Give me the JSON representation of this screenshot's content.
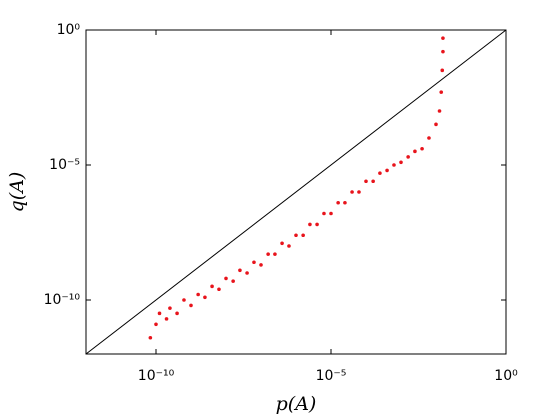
{
  "chart_data": {
    "type": "scatter",
    "x_label": "p(A)",
    "y_label": "q(A)",
    "log_x": true,
    "log_y": true,
    "diagonal": true,
    "box": true,
    "xlim": [
      1e-12,
      1
    ],
    "ylim": [
      1e-12,
      1
    ],
    "xticks": [
      {
        "value": 1e-10,
        "label": "10⁻¹⁰"
      },
      {
        "value": 1e-05,
        "label": "10⁻⁵"
      },
      {
        "value": 1,
        "label": "10⁰"
      }
    ],
    "yticks": [
      {
        "value": 1e-10,
        "label": "10⁻¹⁰"
      },
      {
        "value": 1e-05,
        "label": "10⁻⁵"
      },
      {
        "value": 1,
        "label": "10⁰"
      }
    ],
    "color": "#e8141c",
    "x": [
      6.9e-11,
      1e-10,
      1.26e-10,
      2e-10,
      2.5e-10,
      4e-10,
      6.3e-10,
      1e-09,
      1.6e-09,
      2.5e-09,
      4e-09,
      6.3e-09,
      1e-08,
      1.6e-08,
      2.5e-08,
      4e-08,
      6.3e-08,
      1e-07,
      1.6e-07,
      2.5e-07,
      4e-07,
      6.3e-07,
      1e-06,
      1.6e-06,
      2.5e-06,
      4e-06,
      6.3e-06,
      1e-05,
      1.6e-05,
      2.5e-05,
      4e-05,
      6.3e-05,
      0.0001,
      0.00016,
      0.00025,
      0.0004,
      0.00063,
      0.001,
      0.0016,
      0.0025,
      0.004,
      0.0063,
      0.01,
      0.0126,
      0.0141,
      0.0151,
      0.0158,
      0.0158
    ],
    "values": [
      4e-12,
      1.26e-11,
      3.2e-11,
      2e-11,
      5e-11,
      3.2e-11,
      1e-10,
      6.3e-11,
      1.6e-10,
      1.26e-10,
      3.2e-10,
      2.5e-10,
      6.3e-10,
      5e-10,
      1.26e-09,
      1e-09,
      2.5e-09,
      2e-09,
      5e-09,
      5e-09,
      1.26e-08,
      1e-08,
      2.5e-08,
      2.5e-08,
      6.3e-08,
      6.3e-08,
      1.6e-07,
      1.6e-07,
      4e-07,
      4e-07,
      1e-06,
      1e-06,
      2.5e-06,
      2.5e-06,
      5e-06,
      6.3e-06,
      1e-05,
      1.26e-05,
      2e-05,
      3.2e-05,
      4e-05,
      0.0001,
      0.00032,
      0.001,
      0.005,
      0.032,
      0.158,
      0.5
    ]
  }
}
